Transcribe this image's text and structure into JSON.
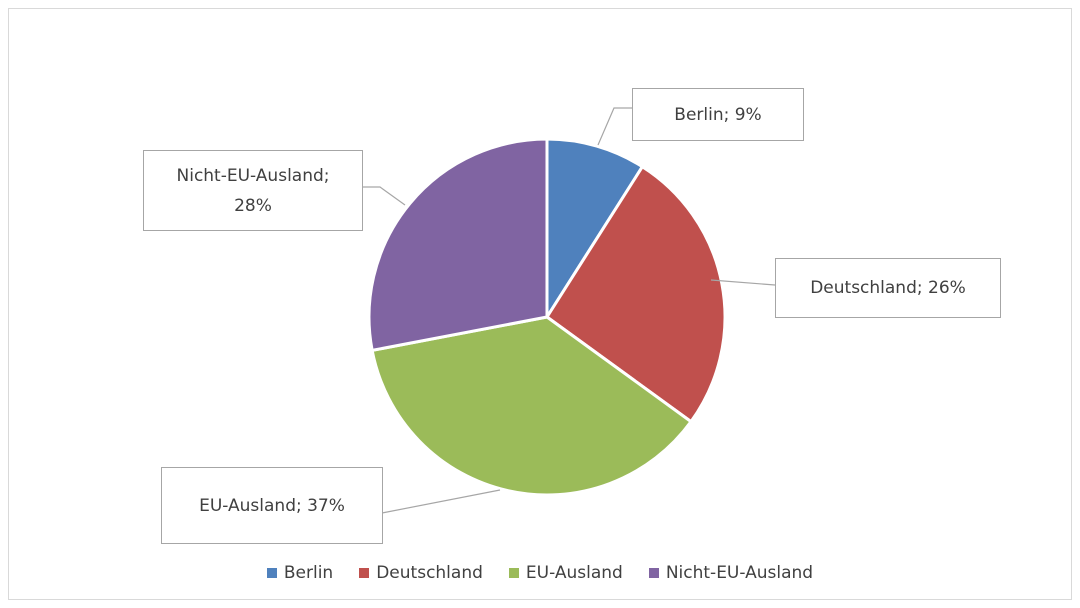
{
  "chart_data": {
    "type": "pie",
    "categories": [
      "Berlin",
      "Deutschland",
      "EU-Ausland",
      "Nicht-EU-Ausland"
    ],
    "values": [
      9,
      26,
      37,
      28
    ],
    "value_labels": [
      "Berlin; 9%",
      "Deutschland; 26%",
      "EU-Ausland; 37%",
      "Nicht-EU-Ausland; 28%"
    ],
    "colors": [
      "#4f81bd",
      "#c0504d",
      "#9bbb59",
      "#8064a2"
    ],
    "legend": "bottom"
  }
}
